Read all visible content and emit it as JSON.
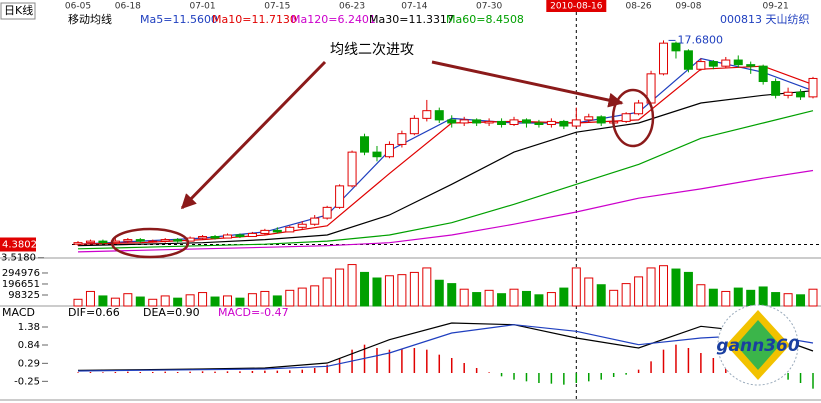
{
  "header": {
    "chart_label": "日K线",
    "indicator": "移动均线",
    "stock": "000813 天山纺织"
  },
  "annotation": "均线二次进攻",
  "logo": "gann360",
  "chart_data": [
    {
      "type": "candlestick",
      "categories": [
        "06-05",
        null,
        null,
        null,
        "06-18",
        null,
        null,
        null,
        null,
        null,
        "07-01",
        null,
        null,
        null,
        null,
        null,
        "07-15",
        null,
        null,
        null,
        null,
        null,
        "06-23",
        null,
        null,
        null,
        null,
        "07-14",
        null,
        null,
        null,
        null,
        null,
        "07-30",
        null,
        null,
        null,
        null,
        null,
        null,
        "2010-08-16",
        null,
        null,
        null,
        null,
        "08-26",
        null,
        null,
        null,
        "09-08",
        null,
        null,
        null,
        null,
        null,
        null,
        "09-21",
        null,
        null,
        null
      ],
      "open": [
        4.4,
        4.5,
        4.6,
        4.5,
        4.6,
        4.7,
        4.6,
        4.6,
        4.7,
        4.6,
        4.8,
        4.9,
        4.8,
        5.0,
        4.9,
        5.1,
        5.3,
        5.2,
        5.5,
        5.7,
        6.1,
        6.8,
        8.2,
        11.4,
        10.4,
        10.1,
        10.9,
        11.6,
        12.6,
        13.1,
        12.5,
        12.3,
        12.5,
        12.3,
        12.4,
        12.2,
        12.5,
        12.3,
        12.2,
        12.4,
        12.1,
        12.5,
        12.7,
        12.3,
        12.4,
        12.9,
        13.6,
        15.5,
        17.5,
        17.0,
        15.8,
        16.3,
        16.0,
        16.4,
        16.1,
        16.0,
        15.0,
        14.1,
        14.3,
        14.0
      ],
      "high": [
        4.6,
        4.7,
        4.7,
        4.8,
        4.8,
        4.8,
        4.7,
        4.8,
        4.8,
        4.9,
        5.0,
        5.0,
        5.1,
        5.1,
        5.2,
        5.4,
        5.5,
        5.6,
        5.9,
        6.3,
        6.9,
        8.3,
        10.5,
        11.6,
        10.8,
        11.1,
        11.8,
        12.8,
        13.8,
        13.3,
        12.8,
        12.7,
        12.6,
        12.6,
        12.6,
        12.7,
        12.6,
        12.5,
        12.6,
        12.5,
        13.3,
        12.9,
        12.8,
        12.6,
        13.0,
        13.8,
        15.7,
        17.68,
        17.6,
        17.1,
        16.5,
        16.4,
        16.6,
        16.7,
        16.3,
        16.1,
        15.2,
        14.6,
        14.5,
        15.3
      ],
      "low": [
        4.3,
        4.4,
        4.4,
        4.5,
        4.5,
        4.5,
        4.5,
        4.5,
        4.5,
        4.6,
        4.7,
        4.7,
        4.8,
        4.8,
        4.9,
        5.0,
        5.1,
        5.2,
        5.4,
        5.6,
        6.0,
        6.7,
        8.1,
        10.2,
        9.8,
        10.0,
        10.7,
        11.5,
        12.4,
        12.3,
        12.0,
        12.1,
        12.1,
        12.1,
        12.0,
        12.1,
        12.0,
        12.0,
        12.0,
        11.9,
        12.0,
        12.3,
        12.1,
        12.2,
        12.3,
        12.8,
        13.5,
        15.4,
        16.5,
        15.6,
        15.7,
        15.8,
        15.9,
        15.9,
        15.5,
        14.8,
        13.9,
        13.9,
        13.8,
        13.9
      ],
      "close": [
        4.5,
        4.6,
        4.5,
        4.6,
        4.7,
        4.6,
        4.6,
        4.7,
        4.6,
        4.8,
        4.9,
        4.8,
        5.0,
        4.9,
        5.1,
        5.3,
        5.2,
        5.5,
        5.7,
        6.1,
        6.8,
        8.2,
        10.4,
        10.4,
        10.1,
        10.9,
        11.6,
        12.6,
        13.1,
        12.5,
        12.3,
        12.5,
        12.3,
        12.4,
        12.2,
        12.5,
        12.3,
        12.2,
        12.4,
        12.1,
        12.5,
        12.7,
        12.3,
        12.4,
        12.9,
        13.6,
        15.5,
        17.5,
        17.0,
        15.8,
        16.3,
        16.0,
        16.4,
        16.1,
        16.0,
        15.0,
        14.1,
        14.3,
        14.0,
        15.2
      ],
      "high_label": "17.6800",
      "x": [
        0,
        5,
        10,
        15,
        20,
        25,
        30,
        35,
        40,
        45,
        50,
        55,
        59
      ],
      "series": [
        {
          "name": "Ma5=11.5600",
          "color": "#1f3fbf",
          "values": [
            4.4,
            4.6,
            4.8,
            5.2,
            6.3,
            10.5,
            12.6,
            12.3,
            12.3,
            13.0,
            16.5,
            15.6,
            14.4
          ]
        },
        {
          "name": "Ma10=11.7130",
          "color": "#e00000",
          "values": [
            4.4,
            4.5,
            4.7,
            5.0,
            5.6,
            9.0,
            12.3,
            12.4,
            12.3,
            12.5,
            15.8,
            16.0,
            14.8
          ]
        },
        {
          "name": "Ma120=6.2401",
          "color": "#cc00cc",
          "values": [
            3.9,
            4.0,
            4.1,
            4.2,
            4.3,
            4.5,
            5.0,
            5.7,
            6.5,
            7.4,
            8.0,
            8.7,
            9.2
          ]
        },
        {
          "name": "Ma30=11.3317",
          "color": "#000000",
          "values": [
            4.3,
            4.4,
            4.5,
            4.7,
            5.0,
            6.3,
            8.3,
            10.4,
            11.7,
            12.3,
            13.6,
            14.1,
            14.4
          ]
        },
        {
          "name": "Ma60=8.4508",
          "color": "#00a000",
          "values": [
            4.1,
            4.2,
            4.3,
            4.4,
            4.6,
            5.0,
            5.8,
            7.0,
            8.3,
            9.6,
            11.3,
            12.3,
            13.1
          ]
        }
      ],
      "ylim": [
        3.5,
        19.4
      ],
      "yticks": [
        {
          "value": 3.518,
          "label": "3.5180"
        }
      ],
      "crosshair": {
        "index": 40,
        "price": 4.3802
      },
      "up_color": "#e00000",
      "down_color": "#00a000"
    },
    {
      "type": "bar",
      "values": [
        60000,
        130000,
        90000,
        70000,
        110000,
        80000,
        60000,
        90000,
        70000,
        100000,
        120000,
        80000,
        90000,
        70000,
        110000,
        130000,
        90000,
        140000,
        160000,
        180000,
        250000,
        330000,
        370000,
        300000,
        250000,
        270000,
        280000,
        300000,
        340000,
        230000,
        200000,
        150000,
        120000,
        140000,
        110000,
        150000,
        130000,
        100000,
        120000,
        160000,
        340000,
        250000,
        190000,
        140000,
        200000,
        260000,
        340000,
        360000,
        330000,
        300000,
        190000,
        150000,
        130000,
        160000,
        140000,
        170000,
        120000,
        110000,
        100000,
        150000
      ],
      "ylim": [
        0,
        393000
      ],
      "yticks": [
        98325,
        196651,
        294976
      ]
    },
    {
      "type": "line",
      "title": "MACD",
      "x": [
        0,
        5,
        10,
        15,
        20,
        25,
        30,
        35,
        40,
        45,
        50,
        55,
        59
      ],
      "series": [
        {
          "name": "DIF=0.66",
          "color": "#000000",
          "values": [
            0.08,
            0.1,
            0.12,
            0.15,
            0.3,
            1.0,
            1.5,
            1.45,
            1.05,
            0.75,
            1.4,
            1.2,
            0.66
          ]
        },
        {
          "name": "DEA=0.90",
          "color": "#1f3fbf",
          "values": [
            0.06,
            0.08,
            0.1,
            0.12,
            0.2,
            0.6,
            1.2,
            1.45,
            1.25,
            0.85,
            1.05,
            1.15,
            0.9
          ]
        }
      ],
      "histogram": {
        "name": "MACD=-0.47",
        "color": "#cc00cc",
        "values": [
          0.02,
          0.03,
          0.02,
          0.03,
          0.04,
          0.03,
          0.03,
          0.04,
          0.03,
          0.04,
          0.05,
          0.04,
          0.05,
          0.05,
          0.06,
          0.07,
          0.07,
          0.08,
          0.1,
          0.15,
          0.25,
          0.45,
          0.7,
          0.85,
          0.75,
          0.7,
          0.72,
          0.75,
          0.7,
          0.55,
          0.45,
          0.3,
          0.15,
          0.02,
          -0.1,
          -0.2,
          -0.25,
          -0.3,
          -0.32,
          -0.35,
          -0.3,
          -0.25,
          -0.2,
          -0.12,
          -0.05,
          0.1,
          0.35,
          0.7,
          0.85,
          0.75,
          0.6,
          0.45,
          0.35,
          0.25,
          0.15,
          0.05,
          -0.1,
          -0.2,
          -0.3,
          -0.47
        ]
      },
      "ylim": [
        -0.75,
        1.65
      ],
      "yticks": [
        -0.25,
        0.29,
        0.84,
        1.38
      ]
    }
  ]
}
